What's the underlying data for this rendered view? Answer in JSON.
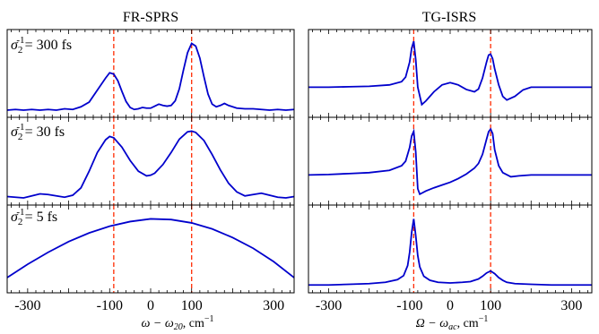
{
  "chart_data": [
    {
      "type": "line",
      "title": "FR-SPRS",
      "xlabel": "ω − ω20,  cm−1",
      "xlabel_parts": {
        "main": "ω − ω",
        "sub": "20",
        "unit": ",  cm",
        "sup": "−1"
      },
      "xlim": [
        -350,
        350
      ],
      "xticks": [
        -300,
        -100,
        0,
        100,
        300
      ],
      "xtick_labels": [
        "-300",
        "-100",
        "0",
        "100",
        "300"
      ],
      "reference_lines_x": [
        -90,
        100
      ],
      "ylabel": "",
      "y_tick_labels_shown": false,
      "panels": [
        {
          "annotation": "σ2-1= 300 fs",
          "annotation_parts": {
            "sigma": "σ",
            "sub": "2",
            "sup": "-1",
            "value": "= 300 fs"
          },
          "ylim": [
            0,
            1.1
          ],
          "series": [
            {
              "color": "#0000cc",
              "x": [
                -350,
                -330,
                -310,
                -290,
                -270,
                -250,
                -230,
                -210,
                -190,
                -170,
                -150,
                -130,
                -110,
                -100,
                -90,
                -80,
                -70,
                -60,
                -50,
                -40,
                -30,
                -20,
                -10,
                0,
                10,
                20,
                30,
                40,
                50,
                60,
                70,
                80,
                90,
                100,
                110,
                120,
                130,
                140,
                150,
                160,
                170,
                180,
                190,
                210,
                230,
                250,
                270,
                290,
                310,
                330,
                350
              ],
              "y": [
                0.0,
                0.01,
                0.0,
                0.01,
                0.0,
                0.01,
                0.0,
                0.02,
                0.01,
                0.05,
                0.12,
                0.3,
                0.48,
                0.56,
                0.54,
                0.44,
                0.28,
                0.13,
                0.04,
                0.01,
                0.02,
                0.04,
                0.03,
                0.03,
                0.06,
                0.09,
                0.07,
                0.06,
                0.07,
                0.14,
                0.32,
                0.6,
                0.86,
                1.0,
                0.96,
                0.78,
                0.5,
                0.24,
                0.09,
                0.05,
                0.07,
                0.1,
                0.07,
                0.03,
                0.02,
                0.02,
                0.01,
                0.0,
                0.01,
                0.0,
                0.01
              ]
            }
          ]
        },
        {
          "annotation": "σ2-1= 30 fs",
          "annotation_parts": {
            "sigma": "σ",
            "sub": "2",
            "sup": "-1",
            "value": "= 30 fs"
          },
          "ylim": [
            0,
            1.1
          ],
          "series": [
            {
              "color": "#0000cc",
              "x": [
                -350,
                -330,
                -310,
                -290,
                -270,
                -250,
                -230,
                -210,
                -190,
                -170,
                -150,
                -130,
                -110,
                -100,
                -90,
                -70,
                -50,
                -30,
                -10,
                0,
                10,
                30,
                50,
                70,
                90,
                100,
                110,
                130,
                150,
                170,
                190,
                210,
                230,
                250,
                270,
                290,
                310,
                330,
                350
              ],
              "y": [
                0.02,
                0.01,
                0.0,
                0.03,
                0.06,
                0.05,
                0.03,
                0.01,
                0.04,
                0.15,
                0.4,
                0.68,
                0.87,
                0.92,
                0.9,
                0.76,
                0.56,
                0.4,
                0.33,
                0.34,
                0.37,
                0.5,
                0.68,
                0.88,
                0.99,
                1.0,
                0.98,
                0.86,
                0.65,
                0.42,
                0.22,
                0.09,
                0.03,
                0.05,
                0.07,
                0.04,
                0.01,
                0.0,
                0.02
              ]
            }
          ]
        },
        {
          "annotation": "σ2-1= 5 fs",
          "annotation_parts": {
            "sigma": "σ",
            "sub": "2",
            "sup": "-1",
            "value": "= 5 fs"
          },
          "ylim": [
            0,
            1.1
          ],
          "series": [
            {
              "color": "#0000cc",
              "x": [
                -350,
                -300,
                -250,
                -200,
                -150,
                -100,
                -50,
                0,
                50,
                100,
                150,
                200,
                250,
                300,
                350
              ],
              "y": [
                0.12,
                0.32,
                0.5,
                0.66,
                0.79,
                0.89,
                0.96,
                1.0,
                0.99,
                0.94,
                0.85,
                0.72,
                0.56,
                0.36,
                0.12
              ]
            }
          ]
        }
      ]
    },
    {
      "type": "line",
      "title": "TG-ISRS",
      "xlabel": "Ω − ωac,  cm−1",
      "xlabel_parts": {
        "main": "Ω − ω",
        "sub": "ac",
        "unit": ",  cm",
        "sup": "−1"
      },
      "xlim": [
        -350,
        350
      ],
      "xticks": [
        -300,
        -100,
        0,
        100,
        300
      ],
      "xtick_labels": [
        "-300",
        "-100",
        "0",
        "100",
        "300"
      ],
      "reference_lines_x": [
        -90,
        100
      ],
      "ylabel": "",
      "y_tick_labels_shown": false,
      "panels": [
        {
          "ylim": [
            -0.5,
            1.1
          ],
          "series": [
            {
              "color": "#0000cc",
              "x": [
                -350,
                -300,
                -250,
                -200,
                -150,
                -120,
                -110,
                -100,
                -95,
                -90,
                -85,
                -80,
                -70,
                -60,
                -40,
                -20,
                0,
                20,
                40,
                60,
                70,
                80,
                90,
                95,
                100,
                105,
                110,
                120,
                130,
                140,
                160,
                180,
                200,
                230,
                260,
                300,
                350
              ],
              "y": [
                0.0,
                0.0,
                0.01,
                0.02,
                0.05,
                0.12,
                0.22,
                0.55,
                0.85,
                1.0,
                0.6,
                0.0,
                -0.38,
                -0.3,
                -0.1,
                0.05,
                0.1,
                0.05,
                -0.05,
                -0.1,
                -0.04,
                0.2,
                0.55,
                0.7,
                0.72,
                0.62,
                0.4,
                0.05,
                -0.2,
                -0.28,
                -0.2,
                -0.06,
                0.0,
                0.0,
                0.0,
                0.0,
                0.0
              ]
            }
          ]
        },
        {
          "ylim": [
            -0.5,
            1.1
          ],
          "series": [
            {
              "color": "#0000cc",
              "x": [
                -350,
                -300,
                -250,
                -200,
                -150,
                -120,
                -110,
                -100,
                -95,
                -90,
                -85,
                -80,
                -75,
                -60,
                -40,
                -20,
                0,
                20,
                40,
                60,
                70,
                80,
                90,
                95,
                100,
                105,
                110,
                120,
                130,
                150,
                170,
                200,
                250,
                300,
                350
              ],
              "y": [
                0.0,
                0.01,
                0.03,
                0.05,
                0.1,
                0.2,
                0.3,
                0.6,
                0.85,
                0.95,
                0.5,
                -0.3,
                -0.42,
                -0.35,
                -0.28,
                -0.22,
                -0.16,
                -0.08,
                0.02,
                0.15,
                0.25,
                0.45,
                0.78,
                0.94,
                1.0,
                0.9,
                0.55,
                0.2,
                0.05,
                -0.04,
                -0.02,
                0.0,
                0.0,
                0.0,
                0.0
              ]
            }
          ]
        },
        {
          "ylim": [
            0,
            1.1
          ],
          "series": [
            {
              "color": "#0000cc",
              "x": [
                -350,
                -300,
                -250,
                -200,
                -160,
                -130,
                -115,
                -105,
                -100,
                -95,
                -90,
                -85,
                -80,
                -75,
                -65,
                -50,
                -30,
                0,
                30,
                50,
                60,
                70,
                80,
                90,
                100,
                110,
                120,
                130,
                140,
                160,
                200,
                250,
                300,
                350
              ],
              "y": [
                0.01,
                0.01,
                0.02,
                0.03,
                0.05,
                0.09,
                0.15,
                0.3,
                0.5,
                0.8,
                1.0,
                0.75,
                0.45,
                0.28,
                0.14,
                0.08,
                0.05,
                0.04,
                0.05,
                0.06,
                0.08,
                0.1,
                0.14,
                0.19,
                0.22,
                0.18,
                0.12,
                0.08,
                0.05,
                0.03,
                0.02,
                0.01,
                0.01,
                0.01
              ]
            }
          ]
        }
      ]
    }
  ]
}
